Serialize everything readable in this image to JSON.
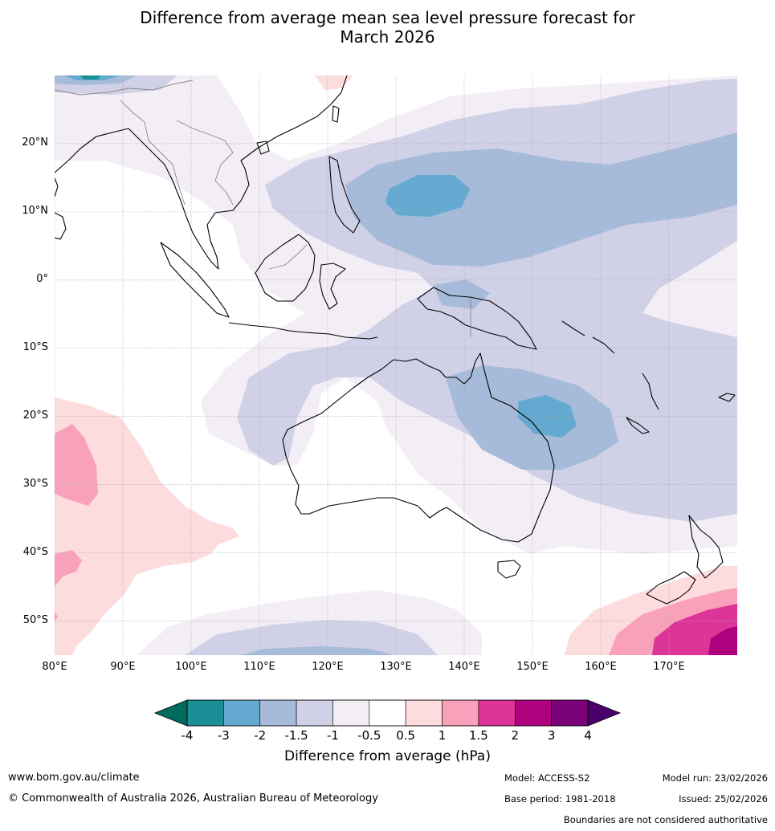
{
  "title": {
    "line1": "Difference from average mean sea level pressure forecast for",
    "line2": "March 2026"
  },
  "map": {
    "region": "Australia and surrounding region",
    "lat_labels": [
      "20°N",
      "10°N",
      "0°",
      "10°S",
      "20°S",
      "30°S",
      "40°S",
      "50°S"
    ],
    "lon_labels": [
      "80°E",
      "90°E",
      "100°E",
      "110°E",
      "120°E",
      "130°E",
      "140°E",
      "150°E",
      "160°E",
      "170°E"
    ],
    "lat_values": [
      20,
      10,
      0,
      -10,
      -20,
      -30,
      -40,
      -50
    ],
    "lon_values": [
      80,
      90,
      100,
      110,
      120,
      130,
      140,
      150,
      160,
      170
    ],
    "extent": {
      "lon_min": 80,
      "lon_max": 180,
      "lat_min": -55,
      "lat_max": 30
    }
  },
  "colorbar": {
    "tick_labels": [
      "-4",
      "-3",
      "-2",
      "-1.5",
      "-1",
      "-0.5",
      "0.5",
      "1",
      "1.5",
      "2",
      "3",
      "4"
    ],
    "colors": [
      "#1a8f96",
      "#63a9d0",
      "#a6bbd9",
      "#d0d1e6",
      "#f3eef6",
      "#ffffff",
      "#fddcde",
      "#f9a1bb",
      "#dd3497",
      "#ae017e",
      "#7a0177"
    ],
    "under_color": "#006b5e",
    "over_color": "#49006a",
    "title": "Difference from average (hPa)"
  },
  "footer": {
    "website": "www.bom.gov.au/climate",
    "copyright": "© Commonwealth of Australia 2026, Australian Bureau of Meteorology",
    "model": "Model: ACCESS-S2",
    "base_period": "Base period: 1981-2018",
    "model_run": "Model run: 23/02/2026",
    "issued": "Issued: 25/02/2026",
    "disclaimer": "Boundaries are not considered authoritative"
  }
}
